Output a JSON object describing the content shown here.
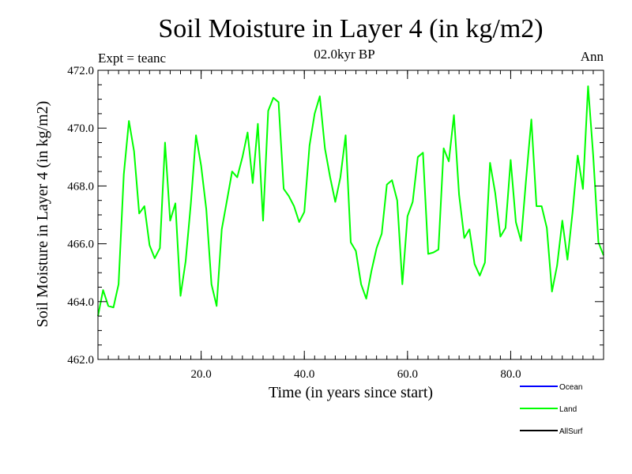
{
  "chart_data": {
    "type": "line",
    "title": "Soil Moisture in Layer 4 (in kg/m2)",
    "subtitle": "02.0kyr BP",
    "left_label": "Expt = teanc",
    "right_label": "Ann",
    "xlabel": "Time (in years since start)",
    "ylabel": "Soil Moisture in Layer 4 (in kg/m2)",
    "xlim": [
      0,
      98
    ],
    "ylim": [
      462.0,
      472.0
    ],
    "x_ticks": [
      20,
      40,
      60,
      80
    ],
    "x_tick_labels": [
      "20.0",
      "40.0",
      "60.0",
      "80.0"
    ],
    "y_ticks": [
      462,
      464,
      466,
      468,
      470,
      472
    ],
    "y_tick_labels": [
      "462.0",
      "464.0",
      "466.0",
      "468.0",
      "470.0",
      "472.0"
    ],
    "legend": [
      {
        "name": "Ocean",
        "color": "#0000ff"
      },
      {
        "name": "Land",
        "color": "#00ff00"
      },
      {
        "name": "AllSurf",
        "color": "#000000"
      }
    ],
    "series": [
      {
        "name": "Land",
        "color": "#00ff00",
        "x": [
          0,
          1,
          2,
          3,
          4,
          5,
          6,
          7,
          8,
          9,
          10,
          11,
          12,
          13,
          14,
          15,
          16,
          17,
          18,
          19,
          20,
          21,
          22,
          23,
          24,
          25,
          26,
          27,
          28,
          29,
          30,
          31,
          32,
          33,
          34,
          35,
          36,
          37,
          38,
          39,
          40,
          41,
          42,
          43,
          44,
          45,
          46,
          47,
          48,
          49,
          50,
          51,
          52,
          53,
          54,
          55,
          56,
          57,
          58,
          59,
          60,
          61,
          62,
          63,
          64,
          65,
          66,
          67,
          68,
          69,
          70,
          71,
          72,
          73,
          74,
          75,
          76,
          77,
          78,
          79,
          80,
          81,
          82,
          83,
          84,
          85,
          86,
          87,
          88,
          89,
          90,
          91,
          92,
          93,
          94,
          95,
          96,
          97,
          98
        ],
        "values": [
          463.5,
          464.4,
          463.85,
          463.8,
          464.6,
          468.4,
          470.25,
          469.2,
          467.05,
          467.3,
          465.95,
          465.5,
          465.85,
          469.5,
          466.8,
          467.4,
          464.2,
          465.4,
          467.4,
          469.75,
          468.7,
          467.2,
          464.6,
          463.85,
          466.5,
          467.5,
          468.5,
          468.3,
          469.0,
          469.85,
          468.1,
          470.15,
          466.8,
          470.6,
          471.05,
          470.9,
          467.9,
          467.65,
          467.3,
          466.75,
          467.1,
          469.4,
          470.5,
          471.1,
          469.3,
          468.3,
          467.45,
          468.3,
          469.75,
          466.05,
          465.75,
          464.6,
          464.1,
          465.05,
          465.85,
          466.35,
          468.05,
          468.2,
          467.5,
          464.6,
          466.95,
          467.45,
          469.0,
          469.15,
          465.65,
          465.7,
          465.8,
          469.3,
          468.85,
          470.45,
          467.7,
          466.2,
          466.5,
          465.3,
          464.9,
          465.35,
          468.8,
          467.75,
          466.25,
          466.55,
          468.9,
          466.75,
          466.1,
          468.25,
          470.3,
          467.3,
          467.3,
          466.55,
          464.35,
          465.25,
          466.8,
          465.45,
          467.1,
          469.05,
          467.9,
          471.45,
          469.05,
          466.05,
          465.6
        ]
      }
    ]
  }
}
